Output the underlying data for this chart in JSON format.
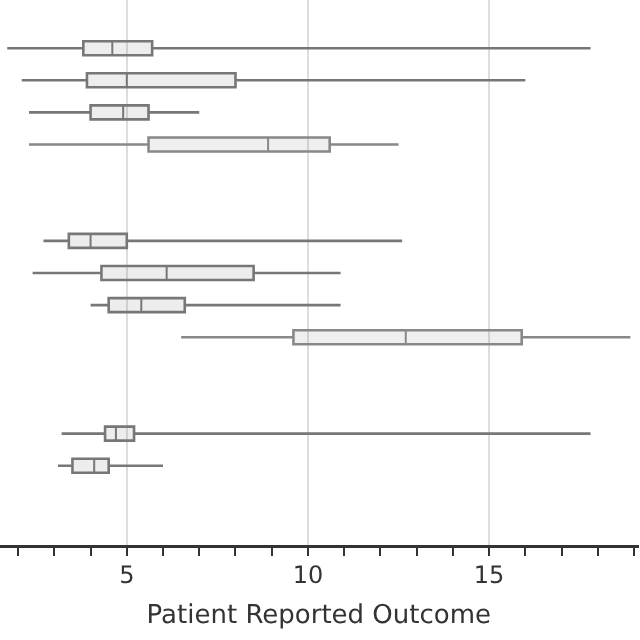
{
  "chart_data": {
    "type": "box",
    "orientation": "horizontal",
    "xlabel": "Patient Reported Outcome",
    "categories": [
      null,
      null,
      null,
      null,
      null,
      null,
      null,
      null,
      null,
      null,
      null,
      null,
      null,
      null,
      null,
      null,
      null
    ],
    "xlim": [
      1.5,
      19.1
    ],
    "xticks": [
      {
        "value": 2,
        "label": null
      },
      {
        "value": 3,
        "label": null
      },
      {
        "value": 4,
        "label": null
      },
      5,
      {
        "value": 6,
        "label": null
      },
      {
        "value": 7,
        "label": null
      },
      {
        "value": 8,
        "label": null
      },
      {
        "value": 9,
        "label": null
      },
      10,
      {
        "value": 11,
        "label": null
      },
      {
        "value": 12,
        "label": null
      },
      {
        "value": 13,
        "label": null
      },
      {
        "value": 14,
        "label": null
      },
      15,
      {
        "value": 16,
        "label": null
      },
      {
        "value": 17,
        "label": null
      },
      {
        "value": 18,
        "label": null
      },
      {
        "value": 19,
        "label": null
      }
    ],
    "grid": "x",
    "legend": false,
    "series": [
      {
        "color": "#777777",
        "boxes": [
          null,
          {
            "low": 1.7,
            "q1": 3.8,
            "median": 4.6,
            "q3": 5.7,
            "high": 17.8
          },
          {
            "low": 2.1,
            "q1": 3.9,
            "median": 5.0,
            "q3": 8.0,
            "high": 16.0
          },
          {
            "low": 2.3,
            "q1": 4.0,
            "median": 4.9,
            "q3": 5.6,
            "high": 7.0
          },
          null,
          null,
          null,
          {
            "low": 2.7,
            "q1": 3.4,
            "median": 4.0,
            "q3": 5.0,
            "high": 12.6
          },
          {
            "low": 2.4,
            "q1": 4.3,
            "median": 6.1,
            "q3": 8.5,
            "high": 10.9
          },
          {
            "low": 4.0,
            "q1": 4.5,
            "median": 5.4,
            "q3": 6.6,
            "high": 10.9
          },
          null,
          null,
          null,
          {
            "low": 3.2,
            "q1": 4.4,
            "median": 4.7,
            "q3": 5.2,
            "high": 17.8
          },
          {
            "low": 3.1,
            "q1": 3.5,
            "median": 4.1,
            "q3": 4.5,
            "high": 6.0
          },
          null,
          null
        ]
      },
      {
        "color": "#888888",
        "boxes": [
          null,
          null,
          null,
          null,
          {
            "low": 2.3,
            "q1": 5.6,
            "median": 8.9,
            "q3": 10.6,
            "high": 12.5
          },
          null,
          null,
          null,
          null,
          null,
          {
            "low": 6.5,
            "q1": 9.6,
            "median": 12.7,
            "q3": 15.9,
            "high": 18.9
          },
          null,
          null,
          null,
          null,
          null,
          null
        ]
      }
    ]
  }
}
